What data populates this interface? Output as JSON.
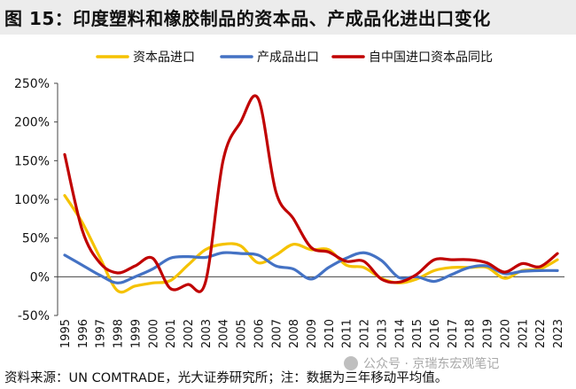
{
  "title": "图 15：印度塑料和橡胶制品的资本品、产成品化进出口变化",
  "footer": "资料来源：UN COMTRADE，光大证券研究所；注：数据为三年移动平均值。",
  "watermark": {
    "prefix": "公众号",
    "name": "京瑞东宏观笔记"
  },
  "chart_data": {
    "type": "line",
    "ylabel": "",
    "xlabel": "",
    "ylim": [
      -50,
      250
    ],
    "yticks": [
      -50,
      0,
      50,
      100,
      150,
      200,
      250
    ],
    "ytick_labels": [
      "-50%",
      "0%",
      "50%",
      "100%",
      "150%",
      "200%",
      "250%"
    ],
    "grid": false,
    "legend_position": "top",
    "categories": [
      "1995",
      "1996",
      "1997",
      "1998",
      "1999",
      "2000",
      "2001",
      "2002",
      "2003",
      "2004",
      "2005",
      "2006",
      "2007",
      "2008",
      "2009",
      "2010",
      "2011",
      "2012",
      "2013",
      "2014",
      "2015",
      "2016",
      "2017",
      "2018",
      "2019",
      "2020",
      "2021",
      "2022",
      "2023"
    ],
    "series": [
      {
        "name": "资本品进口",
        "color": "#F5C200",
        "values": [
          105,
          70,
          25,
          -18,
          -12,
          -8,
          -5,
          15,
          35,
          42,
          40,
          18,
          28,
          42,
          35,
          35,
          15,
          12,
          -2,
          -8,
          -3,
          8,
          12,
          12,
          12,
          -2,
          8,
          10,
          22
        ]
      },
      {
        "name": "产成品出口",
        "color": "#4472C4",
        "values": [
          28,
          15,
          2,
          -8,
          0,
          10,
          24,
          26,
          25,
          31,
          30,
          28,
          14,
          10,
          -3,
          12,
          24,
          31,
          21,
          -1,
          0,
          -6,
          3,
          12,
          14,
          4,
          7,
          8,
          8
        ]
      },
      {
        "name": "自中国进口资本品同比",
        "color": "#C00000",
        "values": [
          158,
          60,
          18,
          5,
          14,
          24,
          -15,
          -10,
          -7,
          150,
          200,
          230,
          110,
          75,
          38,
          32,
          20,
          20,
          -3,
          -7,
          3,
          22,
          22,
          22,
          18,
          6,
          17,
          13,
          30
        ]
      }
    ]
  }
}
